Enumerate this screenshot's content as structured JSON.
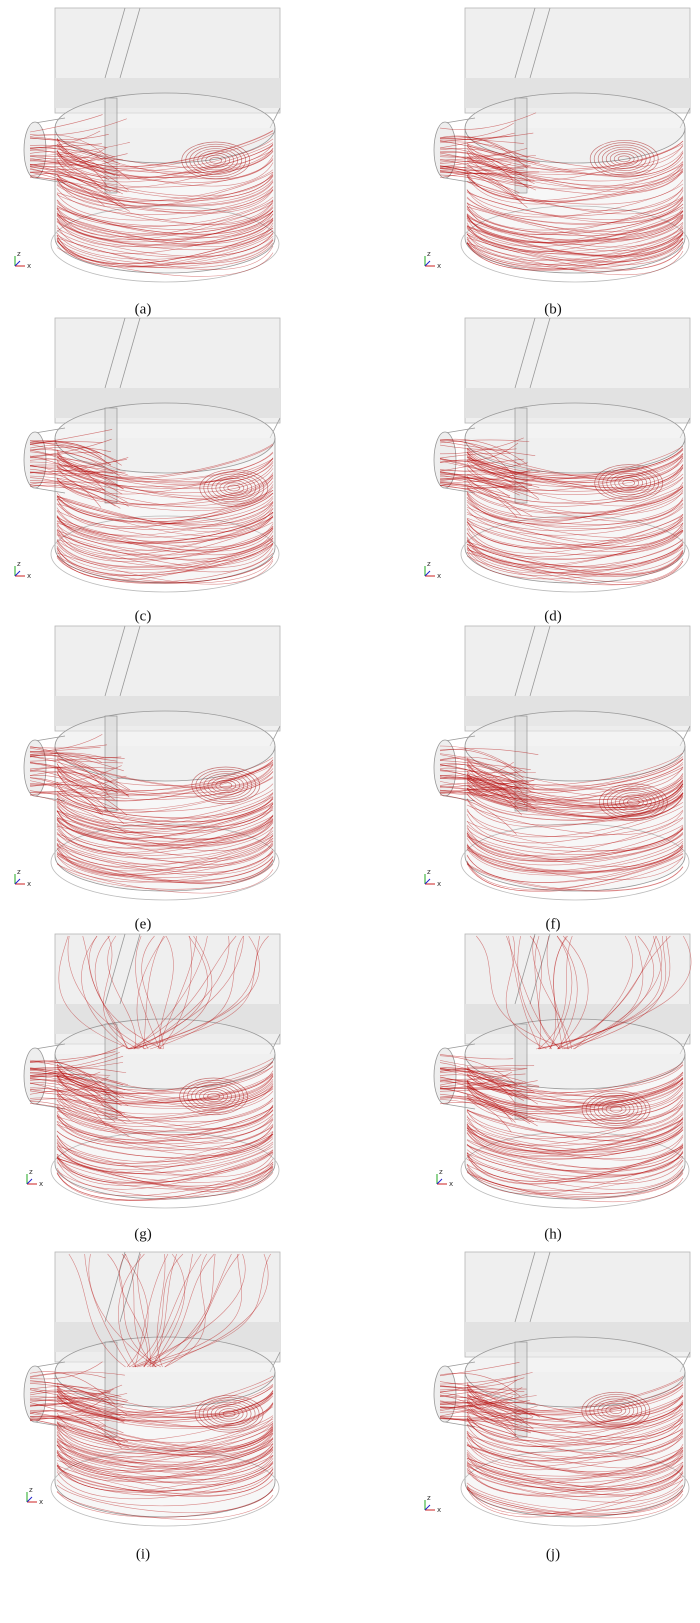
{
  "figure": {
    "triad_labels": [
      "z",
      "x"
    ],
    "panels": [
      {
        "label": "(a)"
      },
      {
        "label": "(b)"
      },
      {
        "label": "(c)"
      },
      {
        "label": "(d)"
      },
      {
        "label": "(e)"
      },
      {
        "label": "(f)"
      },
      {
        "label": "(g)"
      },
      {
        "label": "(h)"
      },
      {
        "label": "(i)"
      },
      {
        "label": "(j)"
      }
    ]
  }
}
